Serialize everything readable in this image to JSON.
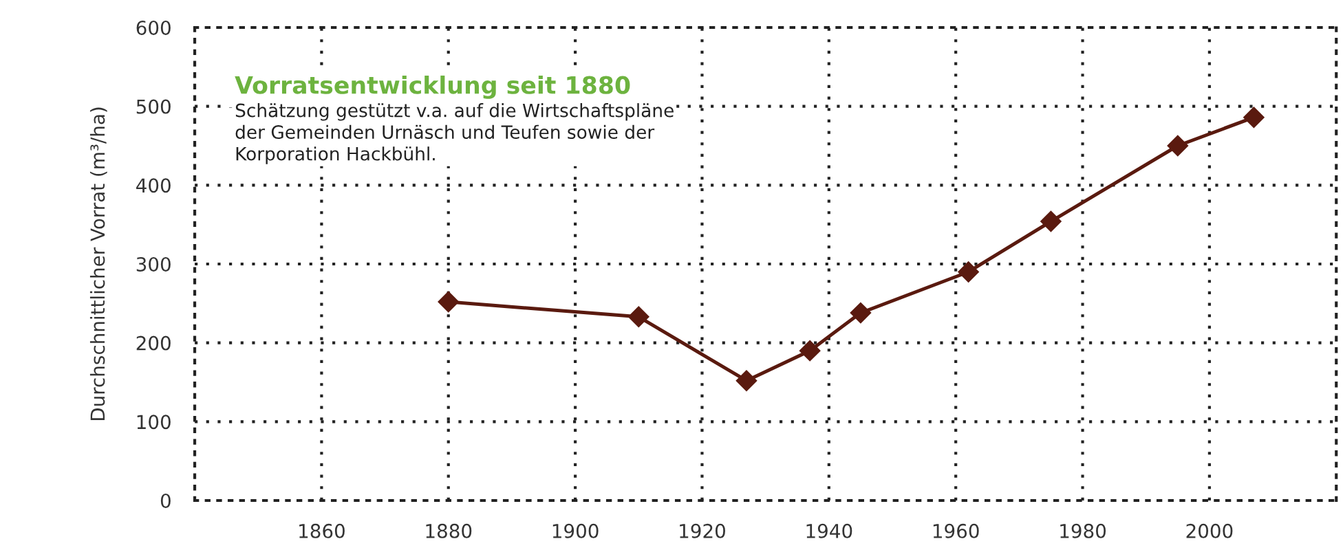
{
  "chart_data": {
    "type": "line",
    "title": "Vorratsentwicklung seit 1880",
    "subtitle": "Schätzung gestützt v.a. auf die Wirtschaftspläne\nder Gemeinden Urnäsch und Teufen sowie der\nKorporation Hackbühl.",
    "ylabel": "Durchschnittlicher Vorrat (m³/ha)",
    "x": [
      1880,
      1910,
      1927,
      1937,
      1945,
      1962,
      1975,
      1995,
      2007
    ],
    "series": [
      {
        "color": "#5a1a0f",
        "values": [
          252,
          233,
          152,
          190,
          238,
          290,
          354,
          450,
          486
        ]
      }
    ],
    "xlim": [
      1840,
      2020
    ],
    "xticks": [
      1860,
      1880,
      1900,
      1920,
      1940,
      1960,
      1980,
      2000
    ],
    "ylim": [
      0,
      600
    ],
    "yticks": [
      0,
      100,
      200,
      300,
      400,
      500,
      600
    ],
    "grid": true,
    "marker": "diamond",
    "line_style": "solid"
  }
}
